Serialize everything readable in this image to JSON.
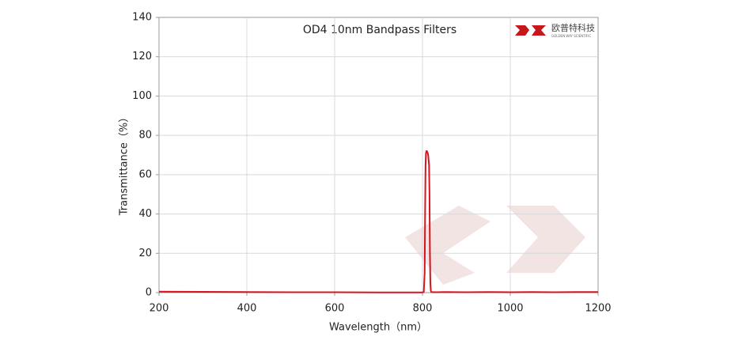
{
  "chart_data": {
    "type": "line",
    "title": "OD4 10nm Bandpass Filters",
    "x_label": "Wavelength（nm）",
    "y_label": "Transmittance（%）",
    "x": [
      200,
      300,
      400,
      500,
      600,
      700,
      780,
      800,
      803,
      805,
      806,
      807,
      808,
      809,
      810,
      812,
      813,
      815,
      816,
      817,
      818,
      819,
      820,
      830,
      850,
      900,
      950,
      1000,
      1050,
      1100,
      1150,
      1200
    ],
    "series": [
      {
        "name": "OD4 10nm Bandpass Filters",
        "color": "#d7141e",
        "values": [
          0.5,
          0.4,
          0.3,
          0.2,
          0.2,
          0.1,
          0.1,
          0.1,
          0.3,
          10,
          40,
          65,
          71,
          72,
          72,
          71,
          70,
          65,
          50,
          20,
          5,
          1,
          0.3,
          0.2,
          0.3,
          0.2,
          0.3,
          0.2,
          0.3,
          0.2,
          0.3,
          0.3
        ]
      }
    ],
    "xlim": [
      200,
      1200
    ],
    "ylim": [
      0,
      140
    ],
    "xticks": [
      200,
      400,
      600,
      800,
      1000,
      1200
    ],
    "yticks": [
      0,
      20,
      40,
      60,
      80,
      100,
      120,
      140
    ],
    "grid": true
  },
  "logo": {
    "name": "欧普特科技",
    "subtitle": "GOLDEN WAY SCIENTIFIC"
  }
}
